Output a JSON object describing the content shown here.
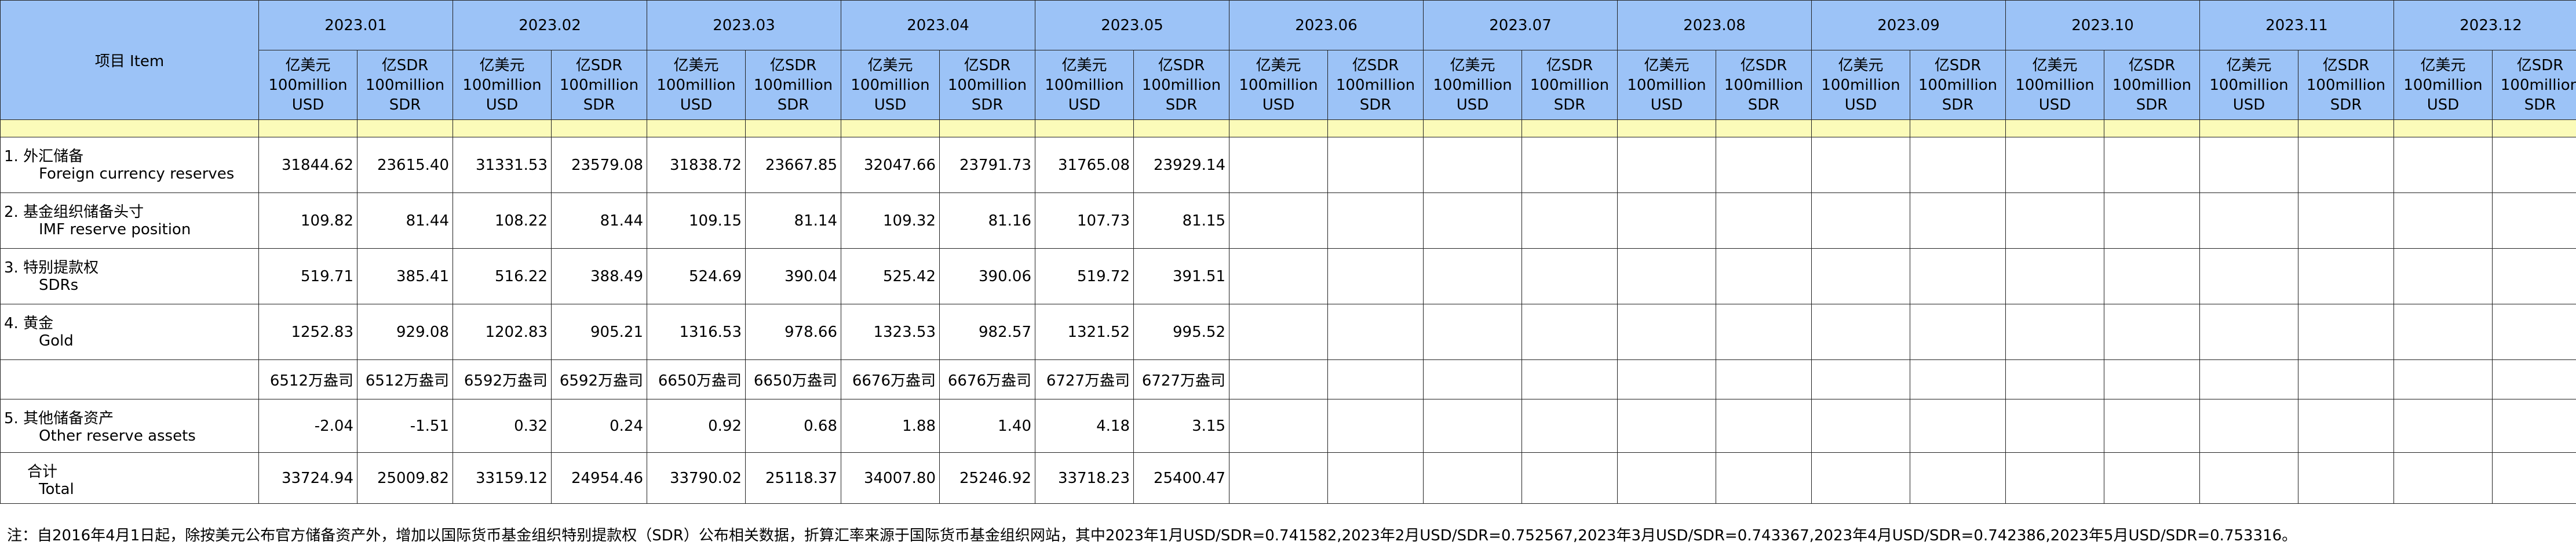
{
  "header": {
    "item_label": "项目 Item",
    "months": [
      "2023.01",
      "2023.02",
      "2023.03",
      "2023.04",
      "2023.05",
      "2023.06",
      "2023.07",
      "2023.08",
      "2023.09",
      "2023.10",
      "2023.11",
      "2023.12"
    ],
    "unit_usd_cn": "亿美元",
    "unit_usd_en": "100million USD",
    "unit_sdr_cn": "亿SDR",
    "unit_sdr_en": "100million SDR"
  },
  "rows": [
    {
      "cn": "1. 外汇储备",
      "en": "Foreign currency reserves",
      "values": [
        "31844.62",
        "23615.40",
        "31331.53",
        "23579.08",
        "31838.72",
        "23667.85",
        "32047.66",
        "23791.73",
        "31765.08",
        "23929.14"
      ]
    },
    {
      "cn": "2. 基金组织储备头寸",
      "en": "IMF reserve position",
      "values": [
        "109.82",
        "81.44",
        "108.22",
        "81.44",
        "109.15",
        "81.14",
        "109.32",
        "81.16",
        "107.73",
        "81.15"
      ]
    },
    {
      "cn": "3. 特别提款权",
      "en": "SDRs",
      "values": [
        "519.71",
        "385.41",
        "516.22",
        "388.49",
        "524.69",
        "390.04",
        "525.42",
        "390.06",
        "519.72",
        "391.51"
      ]
    },
    {
      "cn": "4. 黄金",
      "en": "Gold",
      "values": [
        "1252.83",
        "929.08",
        "1202.83",
        "905.21",
        "1316.53",
        "978.66",
        "1323.53",
        "982.57",
        "1321.52",
        "995.52"
      ]
    },
    {
      "cn": "",
      "en": "",
      "values": [
        "6512万盎司",
        "6512万盎司",
        "6592万盎司",
        "6592万盎司",
        "6650万盎司",
        "6650万盎司",
        "6676万盎司",
        "6676万盎司",
        "6727万盎司",
        "6727万盎司"
      ]
    },
    {
      "cn": "5. 其他储备资产",
      "en": "Other reserve assets",
      "values": [
        "-2.04",
        "-1.51",
        "0.32",
        "0.24",
        "0.92",
        "0.68",
        "1.88",
        "1.40",
        "4.18",
        "3.15"
      ]
    },
    {
      "cn": "合计",
      "en": "Total",
      "values": [
        "33724.94",
        "25009.82",
        "33159.12",
        "24954.46",
        "33790.02",
        "25118.37",
        "34007.80",
        "25246.92",
        "33718.23",
        "25400.47"
      ]
    }
  ],
  "note": "注：自2016年4月1日起，除按美元公布官方储备资产外，增加以国际货币基金组织特别提款权（SDR）公布相关数据，折算汇率来源于国际货币基金组织网站，其中2023年1月USD/SDR=0.741582,2023年2月USD/SDR=0.752567,2023年3月USD/SDR=0.743367,2023年4月USD/SDR=0.742386,2023年5月USD/SDR=0.753316。"
}
